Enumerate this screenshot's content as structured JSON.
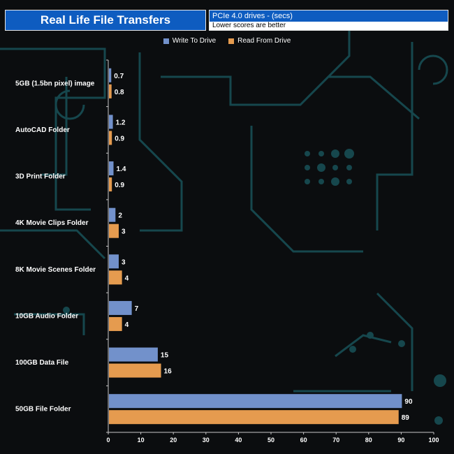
{
  "header": {
    "title": "Real Life File Transfers",
    "subtitle_top": "PCIe 4.0 drives - (secs)",
    "subtitle_bottom": "Lower scores are better"
  },
  "colors": {
    "write": "#7291cb",
    "read": "#e59b4f",
    "text": "#ffffff",
    "axis": "#c8c8c8",
    "background": "#0b0d0f",
    "circuit": "#16474d"
  },
  "chart_data": {
    "type": "bar",
    "orientation": "horizontal",
    "title": "Real Life File Transfers",
    "categories": [
      "5GB (1.5bn pixel) image",
      "AutoCAD Folder",
      "3D Print Folder",
      "4K Movie Clips Folder",
      "8K Movie Scenes Folder",
      "10GB Audio Folder",
      "100GB Data File",
      "50GB File Folder"
    ],
    "series": [
      {
        "name": "Write To  Drive",
        "values": [
          0.7,
          1.2,
          1.4,
          2,
          3,
          7,
          15,
          90
        ],
        "labels": [
          "0.7",
          "1.2",
          "1.4",
          "2",
          "3",
          "7",
          "15",
          "90"
        ]
      },
      {
        "name": "Read From  Drive",
        "values": [
          0.8,
          0.9,
          0.9,
          3,
          4,
          4,
          16,
          89
        ],
        "labels": [
          "0.8",
          "0.9",
          "0.9",
          "3",
          "4",
          "4",
          "16",
          "89"
        ]
      }
    ],
    "xlim": [
      0,
      100
    ],
    "xticks": [
      "0",
      "10",
      "20",
      "30",
      "40",
      "50",
      "60",
      "70",
      "80",
      "90",
      "100"
    ],
    "legend_position": "top",
    "grid": false
  }
}
